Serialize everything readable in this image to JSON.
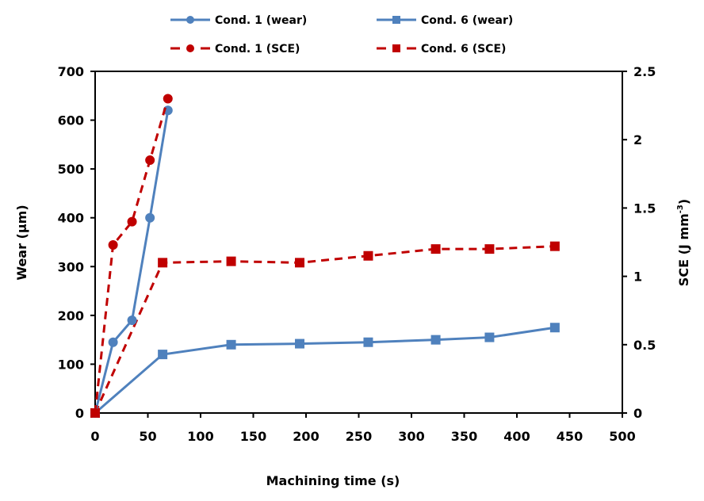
{
  "chart_data": {
    "type": "line",
    "title": "",
    "xlabel": "Machining time (s)",
    "ylabel": "Wear (µm)",
    "y2label": "SCE (J mm-3)",
    "y2label_base": "SCE (J  mm",
    "y2label_sup": "-3",
    "y2label_end": ")",
    "xlim": [
      0,
      500
    ],
    "ylim": [
      0,
      700
    ],
    "y2lim": [
      0,
      2.5
    ],
    "xticks": [
      0,
      50,
      100,
      150,
      200,
      250,
      300,
      350,
      400,
      450,
      500
    ],
    "yticks": [
      0,
      100,
      200,
      300,
      400,
      500,
      600,
      700
    ],
    "y2ticks": [
      0,
      0.5,
      1,
      1.5,
      2,
      2.5
    ],
    "grid": false,
    "legend_position": "top",
    "series": [
      {
        "name": "Cond. 1 (wear)",
        "axis": "left",
        "marker": "circle",
        "line": "solid",
        "color": "#4F81BD",
        "x": [
          0,
          17,
          35,
          52,
          69
        ],
        "y": [
          0,
          145,
          190,
          400,
          620
        ]
      },
      {
        "name": "Cond. 6 (wear)",
        "axis": "left",
        "marker": "square",
        "line": "solid",
        "color": "#4F81BD",
        "x": [
          0,
          64,
          129,
          194,
          259,
          323,
          374,
          436
        ],
        "y": [
          0,
          120,
          140,
          142,
          145,
          150,
          155,
          175
        ]
      },
      {
        "name": "Cond. 1 (SCE)",
        "axis": "right",
        "marker": "circle",
        "line": "dashed",
        "color": "#C00000",
        "x": [
          0,
          17,
          35,
          52,
          69
        ],
        "y": [
          0,
          1.23,
          1.4,
          1.85,
          2.3
        ]
      },
      {
        "name": "Cond. 6 (SCE)",
        "axis": "right",
        "marker": "square",
        "line": "dashed",
        "color": "#C00000",
        "x": [
          0,
          64,
          129,
          194,
          259,
          323,
          374,
          436
        ],
        "y": [
          0,
          1.1,
          1.11,
          1.1,
          1.15,
          1.2,
          1.2,
          1.22
        ]
      }
    ]
  }
}
